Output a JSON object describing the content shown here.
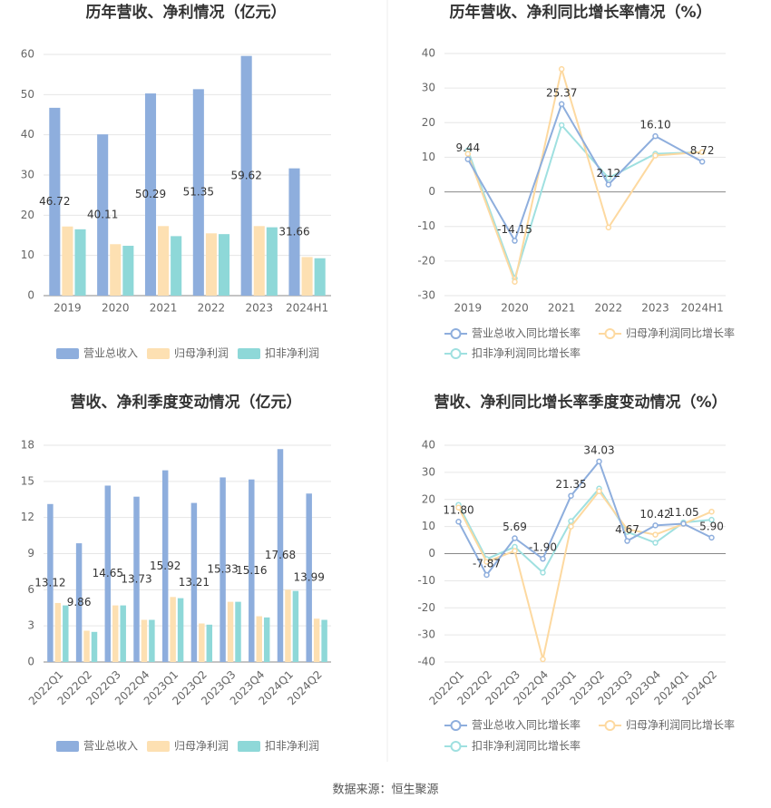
{
  "chart_data": [
    {
      "type": "bar",
      "title": "历年营收、净利情况（亿元）",
      "categories": [
        "2019",
        "2020",
        "2021",
        "2022",
        "2023",
        "2024H1"
      ],
      "series": [
        {
          "name": "营业总收入",
          "color": "#8eaedd",
          "values": [
            46.72,
            40.11,
            50.29,
            51.35,
            59.62,
            31.66
          ]
        },
        {
          "name": "归母净利润",
          "color": "#fde0b2",
          "values": [
            17.2,
            12.8,
            17.3,
            15.5,
            17.3,
            9.6
          ]
        },
        {
          "name": "扣非净利润",
          "color": "#8ed8d8",
          "values": [
            16.5,
            12.4,
            14.8,
            15.3,
            17.0,
            9.3
          ]
        }
      ],
      "ylim": [
        0,
        60
      ],
      "yticks": [
        0,
        10,
        20,
        30,
        40,
        50,
        60
      ],
      "grid": true
    },
    {
      "type": "line",
      "title": "历年营收、净利同比增长率情况（%）",
      "categories": [
        "2019",
        "2020",
        "2021",
        "2022",
        "2023",
        "2024H1"
      ],
      "series": [
        {
          "name": "营业总收入同比增长率",
          "color": "#8eaedd",
          "values": [
            9.44,
            -14.15,
            25.37,
            2.12,
            16.1,
            8.72
          ],
          "value_labels": [
            "9.44",
            "-14.15",
            "25.37",
            "2.12",
            "16.10",
            "8.72"
          ]
        },
        {
          "name": "归母净利润同比增长率",
          "color": "#fdd9a0",
          "values": [
            11,
            -26,
            35.5,
            -10.3,
            10.5,
            11.5
          ]
        },
        {
          "name": "扣非净利润同比增长率",
          "color": "#9fe0e0",
          "values": [
            12,
            -25,
            19.3,
            4,
            11,
            11.5
          ]
        }
      ],
      "ylim": [
        -30,
        40
      ],
      "yticks": [
        -30,
        -20,
        -10,
        0,
        10,
        20,
        30,
        40
      ],
      "grid": true
    },
    {
      "type": "bar",
      "title": "营收、净利季度变动情况（亿元）",
      "categories": [
        "2022Q1",
        "2022Q2",
        "2022Q3",
        "2022Q4",
        "2023Q1",
        "2023Q2",
        "2023Q3",
        "2023Q4",
        "2024Q1",
        "2024Q2"
      ],
      "series": [
        {
          "name": "营业总收入",
          "color": "#8eaedd",
          "values": [
            13.12,
            9.86,
            14.65,
            13.73,
            15.92,
            13.21,
            15.33,
            15.16,
            17.68,
            13.99
          ]
        },
        {
          "name": "归母净利润",
          "color": "#fde0b2",
          "values": [
            4.9,
            2.6,
            4.7,
            3.5,
            5.4,
            3.2,
            5.0,
            3.8,
            6.0,
            3.6
          ]
        },
        {
          "name": "扣非净利润",
          "color": "#8ed8d8",
          "values": [
            4.7,
            2.5,
            4.7,
            3.5,
            5.3,
            3.1,
            5.0,
            3.7,
            5.9,
            3.5
          ]
        }
      ],
      "ylim": [
        0,
        18
      ],
      "yticks": [
        0,
        3,
        6,
        9,
        12,
        15,
        18
      ],
      "grid": true
    },
    {
      "type": "line",
      "title": "营收、净利同比增长率季度变动情况（%）",
      "categories": [
        "2022Q1",
        "2022Q2",
        "2022Q3",
        "2022Q4",
        "2023Q1",
        "2023Q2",
        "2023Q3",
        "2023Q4",
        "2024Q1",
        "2024Q2"
      ],
      "series": [
        {
          "name": "营业总收入同比增长率",
          "color": "#8eaedd",
          "values": [
            11.8,
            -7.87,
            5.69,
            -1.9,
            21.35,
            34.03,
            4.67,
            10.42,
            11.05,
            5.9
          ],
          "value_labels": [
            "11.80",
            "-7.87",
            "5.69",
            "-1.90",
            "21.35",
            "34.03",
            "4.67",
            "10.42",
            "11.05",
            "5.90"
          ]
        },
        {
          "name": "归母净利润同比增长率",
          "color": "#fdd9a0",
          "values": [
            17,
            -3,
            1,
            -39,
            10,
            23,
            9,
            7,
            11,
            15.5
          ]
        },
        {
          "name": "扣非净利润同比增长率",
          "color": "#9fe0e0",
          "values": [
            18,
            -2,
            2.5,
            -7,
            12,
            24,
            8,
            4,
            11.5,
            12.5
          ]
        }
      ],
      "ylim": [
        -40,
        40
      ],
      "yticks": [
        -40,
        -30,
        -20,
        -10,
        0,
        10,
        20,
        30,
        40
      ],
      "grid": true
    }
  ],
  "footer": "数据来源：恒生聚源"
}
